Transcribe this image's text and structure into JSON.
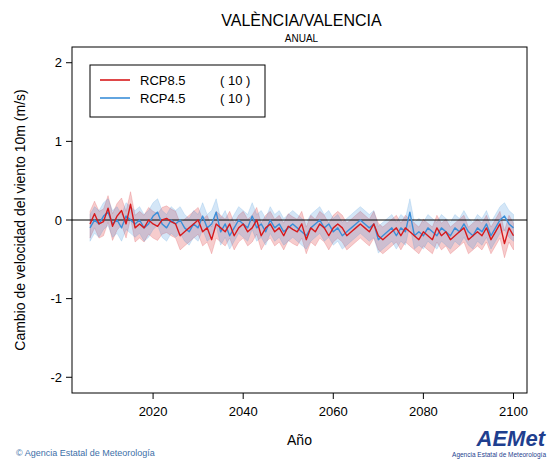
{
  "chart_data": {
    "type": "line",
    "title": "VALÈNCIA/VALENCIA",
    "subtitle": "ANUAL",
    "x_label": "Año",
    "y_label": "Cambio de velocidad del viento 10m (m/s)",
    "source": "© Agencia Estatal de Meteorología",
    "logo": {
      "text": "AEMet",
      "subtitle": "Agencia Estatal de Meteorología"
    },
    "legend": "top-left",
    "grid": false,
    "zero_line": 0,
    "xlim": [
      2002,
      2103
    ],
    "xticks": [
      2020,
      2040,
      2060,
      2080,
      2100
    ],
    "ylim": [
      -2.2,
      2.2
    ],
    "yticks": [
      -2,
      -1,
      0,
      1,
      2
    ],
    "x": [
      2006,
      2007,
      2008,
      2009,
      2010,
      2011,
      2012,
      2013,
      2014,
      2015,
      2016,
      2017,
      2018,
      2019,
      2020,
      2021,
      2022,
      2023,
      2024,
      2025,
      2026,
      2027,
      2028,
      2029,
      2030,
      2031,
      2032,
      2033,
      2034,
      2035,
      2036,
      2037,
      2038,
      2039,
      2040,
      2041,
      2042,
      2043,
      2044,
      2045,
      2046,
      2047,
      2048,
      2049,
      2050,
      2051,
      2052,
      2053,
      2054,
      2055,
      2056,
      2057,
      2058,
      2059,
      2060,
      2061,
      2062,
      2063,
      2064,
      2065,
      2066,
      2067,
      2068,
      2069,
      2070,
      2071,
      2072,
      2073,
      2074,
      2075,
      2076,
      2077,
      2078,
      2079,
      2080,
      2081,
      2082,
      2083,
      2084,
      2085,
      2086,
      2087,
      2088,
      2089,
      2090,
      2091,
      2092,
      2093,
      2094,
      2095,
      2096,
      2097,
      2098,
      2099,
      2100
    ],
    "series": [
      {
        "name": "RCP8.5",
        "note": "( 10 )",
        "color": "#d7191c",
        "values": [
          -0.05,
          0.08,
          -0.05,
          -0.02,
          0.15,
          -0.08,
          0.05,
          0.12,
          -0.05,
          0.2,
          -0.1,
          -0.05,
          -0.1,
          0.0,
          -0.05,
          -0.08,
          0.0,
          0.02,
          -0.02,
          -0.05,
          -0.2,
          -0.15,
          -0.1,
          -0.05,
          0.0,
          -0.15,
          -0.1,
          -0.25,
          -0.05,
          -0.1,
          -0.15,
          -0.05,
          -0.2,
          -0.1,
          -0.05,
          -0.15,
          -0.1,
          0.0,
          -0.2,
          -0.1,
          -0.05,
          -0.15,
          -0.1,
          -0.2,
          -0.08,
          -0.12,
          -0.15,
          -0.05,
          -0.25,
          -0.1,
          -0.15,
          -0.05,
          -0.1,
          -0.2,
          -0.1,
          -0.05,
          -0.1,
          -0.2,
          -0.15,
          -0.1,
          -0.05,
          -0.1,
          -0.15,
          -0.05,
          -0.2,
          -0.25,
          -0.2,
          -0.15,
          -0.1,
          -0.2,
          -0.1,
          -0.15,
          -0.2,
          -0.25,
          -0.15,
          -0.2,
          -0.25,
          -0.1,
          -0.2,
          -0.15,
          -0.25,
          -0.2,
          -0.15,
          -0.1,
          -0.25,
          -0.2,
          -0.15,
          -0.2,
          -0.1,
          -0.25,
          -0.15,
          -0.05,
          -0.3,
          -0.1,
          -0.2
        ],
        "lower": [
          -0.23,
          -0.1,
          -0.23,
          -0.2,
          -0.03,
          -0.26,
          -0.13,
          -0.06,
          -0.23,
          0.02,
          -0.28,
          -0.23,
          -0.28,
          -0.18,
          -0.23,
          -0.26,
          -0.18,
          -0.16,
          -0.2,
          -0.23,
          -0.38,
          -0.33,
          -0.28,
          -0.23,
          -0.18,
          -0.33,
          -0.28,
          -0.43,
          -0.23,
          -0.28,
          -0.33,
          -0.23,
          -0.38,
          -0.28,
          -0.23,
          -0.33,
          -0.28,
          -0.18,
          -0.38,
          -0.28,
          -0.23,
          -0.33,
          -0.28,
          -0.38,
          -0.26,
          -0.3,
          -0.33,
          -0.23,
          -0.43,
          -0.28,
          -0.33,
          -0.23,
          -0.28,
          -0.38,
          -0.28,
          -0.23,
          -0.28,
          -0.38,
          -0.33,
          -0.28,
          -0.23,
          -0.28,
          -0.33,
          -0.23,
          -0.38,
          -0.43,
          -0.38,
          -0.33,
          -0.28,
          -0.38,
          -0.28,
          -0.33,
          -0.38,
          -0.43,
          -0.33,
          -0.38,
          -0.43,
          -0.28,
          -0.38,
          -0.33,
          -0.43,
          -0.38,
          -0.33,
          -0.28,
          -0.43,
          -0.38,
          -0.33,
          -0.38,
          -0.28,
          -0.43,
          -0.33,
          -0.23,
          -0.48,
          -0.28,
          -0.38
        ],
        "upper": [
          0.11,
          0.24,
          0.11,
          0.14,
          0.31,
          0.08,
          0.21,
          0.28,
          0.11,
          0.36,
          0.06,
          0.11,
          0.06,
          0.16,
          0.11,
          0.08,
          0.16,
          0.18,
          0.14,
          0.11,
          -0.04,
          0.01,
          0.06,
          0.11,
          0.16,
          0.01,
          0.06,
          -0.09,
          0.11,
          0.06,
          0.01,
          0.11,
          -0.04,
          0.06,
          0.11,
          0.01,
          0.06,
          0.16,
          -0.04,
          0.06,
          0.11,
          0.01,
          0.06,
          -0.04,
          0.08,
          0.04,
          0.01,
          0.11,
          -0.09,
          0.06,
          0.01,
          0.11,
          0.06,
          -0.04,
          0.06,
          0.11,
          0.06,
          -0.04,
          0.01,
          0.06,
          0.11,
          0.06,
          0.01,
          0.11,
          -0.04,
          -0.09,
          -0.04,
          0.01,
          0.06,
          -0.04,
          0.06,
          0.01,
          -0.04,
          -0.09,
          0.01,
          -0.04,
          -0.09,
          0.06,
          -0.04,
          0.01,
          -0.09,
          -0.04,
          0.01,
          0.06,
          -0.09,
          -0.04,
          0.01,
          -0.04,
          0.06,
          -0.09,
          0.01,
          0.11,
          -0.14,
          0.06,
          -0.04
        ]
      },
      {
        "name": "RCP4.5",
        "note": "( 10 )",
        "color": "#3b8fd9",
        "values": [
          -0.1,
          0.0,
          -0.05,
          0.05,
          0.1,
          -0.05,
          0.0,
          -0.1,
          0.05,
          0.0,
          -0.05,
          0.0,
          -0.1,
          -0.05,
          0.05,
          0.1,
          -0.05,
          -0.1,
          0.0,
          -0.05,
          0.0,
          -0.1,
          -0.15,
          -0.05,
          -0.1,
          0.05,
          -0.1,
          -0.05,
          0.1,
          -0.15,
          -0.05,
          -0.2,
          -0.1,
          0.0,
          -0.05,
          -0.1,
          0.05,
          -0.1,
          -0.05,
          -0.15,
          0.0,
          -0.1,
          -0.05,
          -0.15,
          -0.1,
          -0.05,
          -0.1,
          -0.15,
          -0.2,
          -0.1,
          -0.05,
          0.0,
          -0.1,
          -0.05,
          -0.15,
          -0.1,
          -0.2,
          -0.15,
          -0.1,
          -0.05,
          0.0,
          -0.05,
          -0.1,
          -0.05,
          -0.25,
          -0.2,
          -0.15,
          -0.1,
          -0.2,
          -0.1,
          -0.15,
          0.1,
          -0.2,
          -0.15,
          -0.2,
          -0.1,
          -0.15,
          -0.2,
          -0.1,
          -0.15,
          -0.2,
          -0.1,
          -0.15,
          -0.05,
          -0.15,
          -0.2,
          -0.1,
          -0.15,
          -0.05,
          -0.2,
          -0.1,
          0.0,
          0.05,
          -0.05,
          -0.1
        ],
        "lower": [
          -0.27,
          -0.17,
          -0.22,
          -0.12,
          -0.07,
          -0.22,
          -0.17,
          -0.27,
          -0.12,
          -0.17,
          -0.22,
          -0.17,
          -0.27,
          -0.22,
          -0.12,
          -0.07,
          -0.22,
          -0.27,
          -0.17,
          -0.22,
          -0.17,
          -0.27,
          -0.32,
          -0.22,
          -0.27,
          -0.12,
          -0.27,
          -0.22,
          -0.07,
          -0.32,
          -0.22,
          -0.37,
          -0.27,
          -0.17,
          -0.22,
          -0.27,
          -0.12,
          -0.27,
          -0.22,
          -0.32,
          -0.17,
          -0.27,
          -0.22,
          -0.32,
          -0.27,
          -0.22,
          -0.27,
          -0.32,
          -0.37,
          -0.27,
          -0.22,
          -0.17,
          -0.27,
          -0.22,
          -0.32,
          -0.27,
          -0.37,
          -0.32,
          -0.27,
          -0.22,
          -0.17,
          -0.22,
          -0.27,
          -0.22,
          -0.42,
          -0.37,
          -0.32,
          -0.27,
          -0.37,
          -0.27,
          -0.32,
          -0.07,
          -0.37,
          -0.32,
          -0.37,
          -0.27,
          -0.32,
          -0.37,
          -0.27,
          -0.32,
          -0.37,
          -0.27,
          -0.32,
          -0.22,
          -0.32,
          -0.37,
          -0.27,
          -0.32,
          -0.22,
          -0.37,
          -0.27,
          -0.17,
          -0.12,
          -0.22,
          -0.27
        ],
        "upper": [
          0.07,
          0.17,
          0.12,
          0.22,
          0.27,
          0.12,
          0.17,
          0.07,
          0.22,
          0.17,
          0.12,
          0.17,
          0.07,
          0.12,
          0.22,
          0.27,
          0.12,
          0.07,
          0.17,
          0.12,
          0.17,
          0.07,
          0.02,
          0.12,
          0.07,
          0.22,
          0.07,
          0.12,
          0.27,
          0.02,
          0.12,
          -0.03,
          0.07,
          0.17,
          0.12,
          0.07,
          0.22,
          0.07,
          0.12,
          0.02,
          0.17,
          0.07,
          0.12,
          0.02,
          0.07,
          0.12,
          0.07,
          0.02,
          -0.03,
          0.07,
          0.12,
          0.17,
          0.07,
          0.12,
          0.02,
          0.07,
          -0.03,
          0.02,
          0.07,
          0.12,
          0.17,
          0.12,
          0.07,
          0.12,
          -0.08,
          -0.03,
          0.02,
          0.07,
          -0.03,
          0.07,
          0.02,
          0.27,
          -0.03,
          0.02,
          -0.03,
          0.07,
          0.02,
          -0.03,
          0.07,
          0.02,
          -0.03,
          0.07,
          0.02,
          0.12,
          0.02,
          -0.03,
          0.07,
          0.02,
          0.12,
          -0.03,
          0.07,
          0.17,
          0.22,
          0.12,
          0.07
        ]
      }
    ]
  }
}
